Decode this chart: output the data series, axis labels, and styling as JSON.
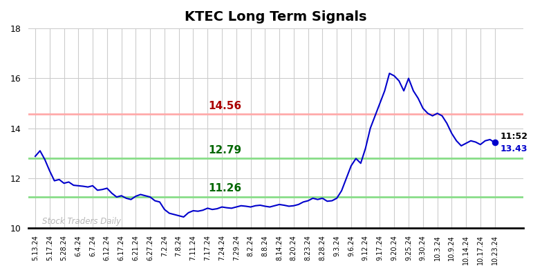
{
  "title": "KTEC Long Term Signals",
  "xlabels": [
    "5.13.24",
    "5.17.24",
    "5.28.24",
    "6.4.24",
    "6.7.24",
    "6.12.24",
    "6.17.24",
    "6.21.24",
    "6.27.24",
    "7.2.24",
    "7.8.24",
    "7.11.24",
    "7.17.24",
    "7.24.24",
    "7.29.24",
    "8.2.24",
    "8.8.24",
    "8.14.24",
    "8.20.24",
    "8.23.24",
    "8.28.24",
    "9.3.24",
    "9.6.24",
    "9.12.24",
    "9.17.24",
    "9.20.24",
    "9.25.24",
    "9.30.24",
    "10.3.24",
    "10.9.24",
    "10.14.24",
    "10.17.24",
    "10.23.24"
  ],
  "prices": [
    12.88,
    13.1,
    12.75,
    12.3,
    11.9,
    11.95,
    11.8,
    11.85,
    11.72,
    11.7,
    11.68,
    11.65,
    11.7,
    11.52,
    11.55,
    11.6,
    11.4,
    11.25,
    11.3,
    11.2,
    11.15,
    11.28,
    11.35,
    11.3,
    11.25,
    11.1,
    11.05,
    10.75,
    10.6,
    10.55,
    10.5,
    10.45,
    10.62,
    10.7,
    10.68,
    10.72,
    10.8,
    10.75,
    10.78,
    10.85,
    10.82,
    10.8,
    10.85,
    10.9,
    10.88,
    10.85,
    10.9,
    10.92,
    10.88,
    10.85,
    10.9,
    10.95,
    10.92,
    10.88,
    10.9,
    10.95,
    11.05,
    11.1,
    11.2,
    11.15,
    11.2,
    11.08,
    11.1,
    11.2,
    11.5,
    12.0,
    12.5,
    12.79,
    12.6,
    13.2,
    14.0,
    14.5,
    15.0,
    15.5,
    16.2,
    16.1,
    15.9,
    15.5,
    16.0,
    15.5,
    15.2,
    14.8,
    14.6,
    14.5,
    14.6,
    14.5,
    14.2,
    13.8,
    13.5,
    13.3,
    13.4,
    13.5,
    13.45,
    13.35,
    13.5,
    13.55,
    13.43
  ],
  "hline_red": 14.56,
  "hline_green_upper": 12.79,
  "hline_green_lower": 11.26,
  "hline_red_color": "#ffaaaa",
  "hline_green_color": "#88dd88",
  "line_color": "#0000cc",
  "last_price": 13.43,
  "last_time": "11:52",
  "watermark": "Stock Traders Daily",
  "ylim": [
    10,
    18
  ],
  "yticks": [
    10,
    12,
    14,
    16,
    18
  ],
  "background_color": "#ffffff",
  "grid_color": "#cccccc",
  "title_fontsize": 14,
  "label_red_value": "14.56",
  "label_red_color": "#aa0000",
  "label_green_upper": "12.79",
  "label_green_lower": "11.26",
  "label_green_color": "#006600",
  "watermark_color": "#aaaaaa",
  "annotation_color_time": "#000000",
  "annotation_color_price": "#0000cc"
}
